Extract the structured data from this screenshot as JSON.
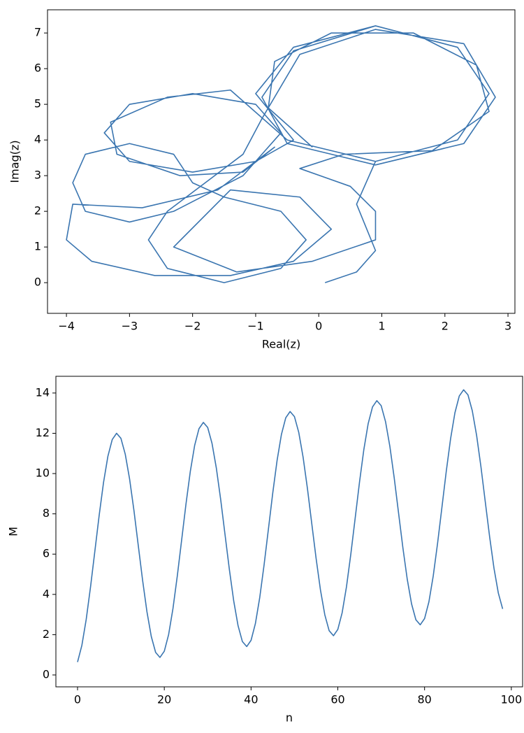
{
  "chart_data": [
    {
      "type": "line",
      "x_label": "Real(z)",
      "y_label": "Imag(z)",
      "color": "#3a75b0",
      "x": [
        0.1,
        0.6,
        0.9,
        0.6,
        0.9,
        2.2,
        2.7,
        2.2,
        0.9,
        -0.4,
        -1.0,
        -0.4,
        -1.0,
        -2.0,
        -3.0,
        -3.4,
        -3.0,
        -2.0,
        -1.0,
        -0.6,
        -1.2,
        -2.3,
        -3.0,
        -3.7,
        -3.9,
        -3.7,
        -3.0,
        -2.3,
        -2.0,
        -1.5,
        -0.6,
        -0.2,
        -0.6,
        -1.5,
        -2.4,
        -2.7,
        -2.4,
        -1.2,
        -0.9,
        -0.3,
        0.9,
        2.3,
        2.8,
        2.3,
        0.9,
        -0.5,
        -0.9,
        -0.4,
        0.9,
        2.2,
        2.7,
        2.2,
        0.9,
        -0.5,
        -1.4,
        -2.4,
        -3.3,
        -3.2,
        -2.2,
        -1.2,
        -0.7,
        -1.6,
        -2.8,
        -3.9,
        -4.0,
        -3.6,
        -2.6,
        -1.4,
        -0.4,
        0.2,
        -0.3,
        -1.4,
        -2.3,
        -1.3,
        -0.1,
        0.9,
        0.9,
        0.5,
        -0.3,
        0.4,
        1.8,
        2.7,
        2.5,
        1.5,
        0.2,
        -0.7,
        -0.8,
        -0.1
      ],
      "values": [
        0.0,
        0.3,
        0.9,
        2.2,
        3.4,
        4.0,
        5.3,
        6.6,
        7.2,
        6.6,
        5.3,
        4.0,
        3.4,
        3.1,
        3.4,
        4.2,
        5.0,
        5.3,
        5.0,
        4.2,
        3.0,
        2.0,
        1.7,
        2.0,
        2.8,
        3.6,
        3.9,
        3.6,
        2.8,
        2.4,
        2.0,
        1.2,
        0.4,
        0.0,
        0.4,
        1.2,
        2.0,
        3.6,
        4.6,
        6.4,
        7.1,
        6.7,
        5.2,
        3.9,
        3.3,
        3.9,
        5.2,
        6.5,
        7.2,
        6.6,
        5.3,
        4.0,
        3.4,
        4.0,
        5.4,
        5.2,
        4.5,
        3.6,
        3.0,
        3.1,
        3.8,
        2.6,
        2.1,
        2.2,
        1.2,
        0.6,
        0.2,
        0.2,
        0.6,
        1.5,
        2.4,
        2.6,
        1.0,
        0.3,
        0.6,
        1.2,
        2.0,
        2.7,
        3.2,
        3.6,
        3.7,
        4.8,
        6.1,
        7.0,
        7.0,
        6.2,
        4.9,
        3.8
      ],
      "xlim": [
        -4.3,
        3.11
      ],
      "ylim": [
        -0.86,
        7.65
      ],
      "xticks": [
        {
          "value": -4,
          "label": "−4"
        },
        {
          "value": -3,
          "label": "−3"
        },
        {
          "value": -2,
          "label": "−2"
        },
        {
          "value": -1,
          "label": "−1"
        },
        0,
        1,
        2,
        3
      ],
      "yticks": [
        0,
        1,
        2,
        3,
        4,
        5,
        6,
        7
      ]
    },
    {
      "type": "line",
      "x_label": "n",
      "y_label": "M",
      "color": "#3a75b0",
      "x": [
        0,
        1,
        2,
        3,
        4,
        5,
        6,
        7,
        8,
        9,
        10,
        11,
        12,
        13,
        14,
        15,
        16,
        17,
        18,
        19,
        20,
        21,
        22,
        23,
        24,
        25,
        26,
        27,
        28,
        29,
        30,
        31,
        32,
        33,
        34,
        35,
        36,
        37,
        38,
        39,
        40,
        41,
        42,
        43,
        44,
        45,
        46,
        47,
        48,
        49,
        50,
        51,
        52,
        53,
        54,
        55,
        56,
        57,
        58,
        59,
        60,
        61,
        62,
        63,
        64,
        65,
        66,
        67,
        68,
        69,
        70,
        71,
        72,
        73,
        74,
        75,
        76,
        77,
        78,
        79,
        80,
        81,
        82,
        83,
        84,
        85,
        86,
        87,
        88,
        89,
        90,
        91,
        92,
        93,
        94,
        95,
        96,
        97,
        98
      ],
      "values": [
        0.64,
        1.47,
        2.76,
        4.38,
        6.16,
        7.95,
        9.57,
        10.86,
        11.69,
        12.0,
        11.75,
        10.96,
        9.73,
        8.17,
        6.43,
        4.7,
        3.14,
        1.91,
        1.12,
        0.87,
        1.18,
        2.01,
        3.3,
        4.92,
        6.7,
        8.49,
        10.11,
        11.4,
        12.23,
        12.54,
        12.29,
        11.5,
        10.27,
        8.71,
        6.97,
        5.24,
        3.68,
        2.45,
        1.66,
        1.41,
        1.72,
        2.55,
        3.84,
        5.46,
        7.24,
        9.03,
        10.65,
        11.94,
        12.77,
        13.08,
        12.83,
        12.04,
        10.81,
        9.25,
        7.51,
        5.78,
        4.22,
        2.99,
        2.2,
        1.95,
        2.26,
        3.09,
        4.38,
        6.0,
        7.78,
        9.57,
        11.19,
        12.48,
        13.31,
        13.62,
        13.37,
        12.58,
        11.35,
        9.79,
        8.05,
        6.32,
        4.76,
        3.53,
        2.74,
        2.49,
        2.8,
        3.63,
        4.92,
        6.54,
        8.32,
        10.11,
        11.73,
        13.02,
        13.85,
        14.16,
        13.91,
        13.12,
        11.89,
        10.33,
        8.59,
        6.86,
        5.3,
        4.07,
        3.28
      ],
      "xlim": [
        -4.99,
        102.6
      ],
      "ylim": [
        -0.59,
        14.83
      ],
      "xticks": [
        0,
        20,
        40,
        60,
        80,
        100
      ],
      "yticks": [
        0,
        2,
        4,
        6,
        8,
        10,
        12,
        14
      ]
    }
  ]
}
